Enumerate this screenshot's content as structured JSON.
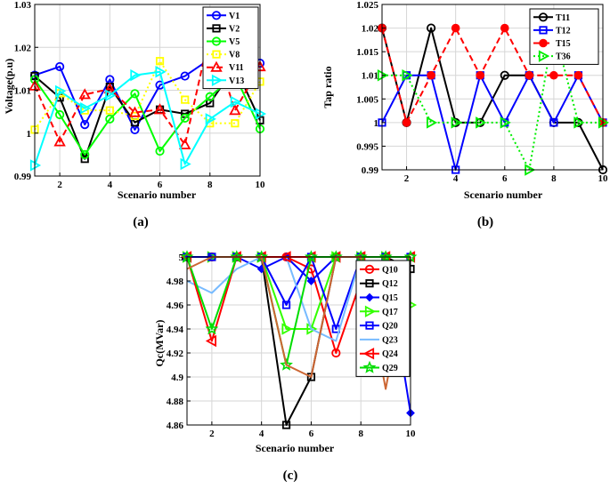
{
  "chart_data": [
    {
      "type": "line",
      "id": "a",
      "caption": "(a)",
      "xlabel": "Scenario number",
      "ylabel": "Voltage(p.u)",
      "xlim": [
        1,
        10
      ],
      "ylim": [
        0.99,
        1.03
      ],
      "xticks": [
        2,
        4,
        6,
        8,
        10
      ],
      "yticks": [
        0.99,
        1,
        1.01,
        1.02,
        1.03
      ],
      "ytick_labels": [
        "0.99",
        "1",
        "1.01",
        "1.02",
        "1.03"
      ],
      "x": [
        1,
        2,
        3,
        4,
        5,
        6,
        7,
        8,
        9,
        10
      ],
      "series": [
        {
          "name": "V1",
          "color": "#0000ff",
          "dash": "solid",
          "marker": "circle",
          "values": [
            1.0135,
            1.0155,
            1.002,
            1.0125,
            1.0008,
            1.0112,
            1.0133,
            1.0173,
            1.0145,
            1.0163
          ]
        },
        {
          "name": "V2",
          "color": "#000000",
          "dash": "solid",
          "marker": "square",
          "values": [
            1.0133,
            1.0083,
            0.994,
            1.0108,
            1.0025,
            1.0055,
            1.0045,
            1.007,
            1.0155,
            1.003
          ]
        },
        {
          "name": "V5",
          "color": "#00ff00",
          "dash": "solid",
          "marker": "circle",
          "values": [
            1.0125,
            1.0043,
            0.995,
            1.0033,
            1.0092,
            0.9958,
            1.0035,
            1.0085,
            1.0135,
            1.001
          ]
        },
        {
          "name": "V8",
          "color": "#ffff00",
          "dash": "dotted",
          "marker": "square",
          "values": [
            1.0008,
            1.0093,
            1.0053,
            1.0053,
            1.004,
            1.0168,
            1.0078,
            1.0023,
            1.0023,
            1.012
          ]
        },
        {
          "name": "V11",
          "color": "#ff0000",
          "dash": "dashed",
          "marker": "triangle-up",
          "values": [
            1.011,
            0.998,
            1.009,
            1.0103,
            1.0048,
            1.0055,
            0.9973,
            1.0235,
            1.0053,
            1.0155
          ]
        },
        {
          "name": "V13",
          "color": "#00ffff",
          "dash": "solid",
          "marker": "triangle-right",
          "values": [
            0.9925,
            1.0098,
            1.0058,
            1.0088,
            1.0135,
            1.0143,
            0.9928,
            1.0033,
            1.0073,
            1.0045
          ]
        }
      ],
      "legend": "top-right"
    },
    {
      "type": "line",
      "id": "b",
      "caption": "(b)",
      "xlabel": "Scenario number",
      "ylabel": "Tap ratio",
      "xlim": [
        1,
        10
      ],
      "ylim": [
        0.99,
        1.025
      ],
      "xticks": [
        2,
        4,
        6,
        8,
        10
      ],
      "yticks": [
        0.99,
        0.995,
        1,
        1.005,
        1.01,
        1.015,
        1.02,
        1.025
      ],
      "ytick_labels": [
        "0.99",
        "0.995",
        "1",
        "1.005",
        "1.01",
        "1.015",
        "1.02",
        "1.025"
      ],
      "x": [
        1,
        2,
        3,
        4,
        5,
        6,
        7,
        8,
        9,
        10
      ],
      "series": [
        {
          "name": "T11",
          "color": "#000000",
          "dash": "solid",
          "marker": "circle",
          "values": [
            1.02,
            1.0,
            1.02,
            1.0,
            1.0,
            1.01,
            1.01,
            1.0,
            1.0,
            0.99
          ]
        },
        {
          "name": "T12",
          "color": "#0000ff",
          "dash": "solid",
          "marker": "square",
          "values": [
            1.0,
            1.01,
            1.01,
            0.99,
            1.01,
            1.0,
            1.01,
            1.0,
            1.01,
            1.0
          ]
        },
        {
          "name": "T15",
          "color": "#ff0000",
          "dash": "dashed",
          "marker": "circle-filled",
          "values": [
            1.02,
            1.0,
            1.01,
            1.02,
            1.01,
            1.02,
            1.01,
            1.01,
            1.01,
            1.0
          ]
        },
        {
          "name": "T36",
          "color": "#00ee00",
          "dash": "dotted",
          "marker": "triangle-right",
          "values": [
            1.01,
            1.01,
            1.0,
            1.0,
            1.0,
            1.0,
            0.99,
            1.02,
            1.0,
            1.0
          ]
        }
      ],
      "legend": "top-right"
    },
    {
      "type": "line",
      "id": "c",
      "caption": "(c)",
      "xlabel": "Scenario number",
      "ylabel": "Qc(MVar)",
      "xlim": [
        1,
        10
      ],
      "ylim": [
        4.86,
        5.0
      ],
      "xticks": [
        2,
        4,
        6,
        8,
        10
      ],
      "yticks": [
        4.86,
        4.88,
        4.9,
        4.92,
        4.94,
        4.96,
        4.98,
        5.0
      ],
      "ytick_labels": [
        "4.86",
        "4.88",
        "4.9",
        "4.92",
        "4.94",
        "4.96",
        "4.98",
        "5"
      ],
      "x": [
        1,
        2,
        3,
        4,
        5,
        6,
        7,
        8,
        9,
        10
      ],
      "series": [
        {
          "name": "Q10",
          "color": "#ff0000",
          "dash": "solid",
          "marker": "circle",
          "values": [
            5.0,
            5.0,
            5.0,
            5.0,
            5.0,
            4.99,
            4.92,
            4.98,
            5.0,
            5.0
          ]
        },
        {
          "name": "Q12",
          "color": "#000000",
          "dash": "solid",
          "marker": "square",
          "values": [
            5.0,
            5.0,
            5.0,
            5.0,
            4.86,
            4.9,
            5.0,
            5.0,
            5.0,
            4.99
          ]
        },
        {
          "name": "Q15",
          "color": "#0000ff",
          "dash": "solid",
          "marker": "diamond",
          "values": [
            5.0,
            5.0,
            5.0,
            4.99,
            5.0,
            4.98,
            5.0,
            5.0,
            5.0,
            4.87
          ]
        },
        {
          "name": "Q17",
          "color": "#33ff00",
          "dash": "solid",
          "marker": "triangle-right",
          "values": [
            5.0,
            5.0,
            5.0,
            5.0,
            4.94,
            4.94,
            5.0,
            5.0,
            5.0,
            4.96
          ]
        },
        {
          "name": "Q20",
          "color": "#0000ff",
          "dash": "solid",
          "marker": "square",
          "values": [
            5.0,
            5.0,
            5.0,
            5.0,
            4.96,
            5.0,
            4.94,
            5.0,
            5.0,
            5.0
          ]
        },
        {
          "name": "Q23",
          "color": "#77bbff",
          "dash": "solid",
          "marker": "none",
          "values": [
            4.98,
            4.97,
            4.99,
            5.0,
            5.0,
            4.94,
            4.93,
            5.0,
            5.0,
            5.0
          ]
        },
        {
          "name": "Q24",
          "color": "#ff0000",
          "dash": "solid",
          "marker": "triangle-left",
          "values": [
            5.0,
            4.93,
            5.0,
            5.0,
            5.0,
            5.0,
            5.0,
            5.0,
            5.0,
            5.0
          ]
        },
        {
          "name": "Q29",
          "color": "#00dd00",
          "dash": "solid",
          "marker": "star",
          "values": [
            5.0,
            4.94,
            5.0,
            5.0,
            4.91,
            5.0,
            5.0,
            5.0,
            5.0,
            5.0
          ]
        },
        {
          "name": "",
          "color": "#cc6633",
          "dash": "solid",
          "marker": "none",
          "values": [
            4.99,
            5.0,
            5.0,
            5.0,
            4.91,
            4.9,
            5.0,
            5.0,
            4.89,
            5.0
          ]
        }
      ],
      "legend": "right"
    }
  ]
}
